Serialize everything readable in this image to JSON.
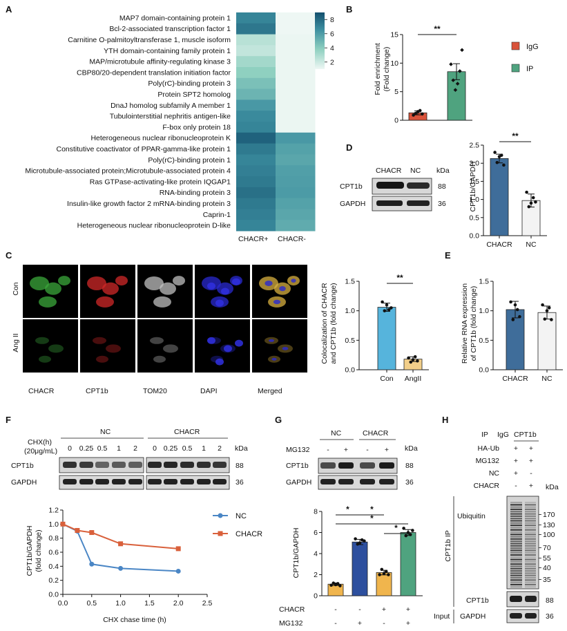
{
  "panels": {
    "A": "A",
    "B": "B",
    "C": "C",
    "D": "D",
    "E": "E",
    "F": "F",
    "G": "G",
    "H": "H"
  },
  "panel_a": {
    "rows": [
      "MAP7 domain-containing protein 1",
      "Bcl-2-associated transcription factor 1",
      "Carnitine O-palmitoyltransferase 1, muscle isoform",
      "YTH domain-containing family protein 1",
      "MAP/microtubule affinity-regulating kinase 3",
      "CBP80/20-dependent translation initiation factor",
      "Poly(rC)-binding protein 3",
      "Protein SPT2 homolog",
      "DnaJ homolog subfamily A member 1",
      "Tubulointerstitial nephritis antigen-like",
      "F-box only protein 18",
      "Heterogeneous nuclear ribonucleoprotein K",
      "Constitutive coactivator of PPAR-gamma-like protein 1",
      "Poly(rC)-binding protein 1",
      "Microtubule-associated protein;Microtubule-associated protein 4",
      "Ras GTPase-activating-like protein IQGAP1",
      "RNA-binding protein 3",
      "Insulin-like growth factor 2 mRNA-binding protein 3",
      "Caprin-1",
      "Heterogeneous nuclear ribonucleoprotein D-like"
    ],
    "columns": [
      "CHACR+",
      "CHACR-"
    ],
    "values": [
      [
        7.0,
        1.0
      ],
      [
        7.5,
        1.0
      ],
      [
        2.6,
        1.1
      ],
      [
        2.3,
        1.1
      ],
      [
        3.2,
        1.1
      ],
      [
        3.8,
        1.1
      ],
      [
        4.5,
        1.1
      ],
      [
        5.0,
        1.1
      ],
      [
        6.2,
        1.1
      ],
      [
        6.8,
        1.1
      ],
      [
        7.0,
        1.1
      ],
      [
        8.3,
        6.2
      ],
      [
        7.4,
        5.8
      ],
      [
        7.0,
        5.6
      ],
      [
        7.2,
        5.9
      ],
      [
        7.4,
        6.0
      ],
      [
        7.8,
        6.1
      ],
      [
        7.4,
        5.8
      ],
      [
        7.2,
        5.6
      ],
      [
        7.0,
        5.4
      ]
    ],
    "colorbar_ticks": [
      "8",
      "6",
      "4",
      "2"
    ],
    "colors": {
      "low": "#eef7f4",
      "high": "#14506e"
    }
  },
  "panel_b": {
    "ylabel": "Fold enrichment (Fold change)",
    "yticks": [
      "0",
      "5",
      "10",
      "15"
    ],
    "sig": "**",
    "legend": [
      {
        "label": "IgG",
        "color": "#d9533b"
      },
      {
        "label": "IP",
        "color": "#4fa37f"
      }
    ]
  },
  "panel_c": {
    "row_labels": [
      "Con",
      "Ang II"
    ],
    "col_labels": [
      "CHACR",
      "CPT1b",
      "TOM20",
      "DAPI",
      "Merged"
    ],
    "ylabel": "Colocalization  of CHACR and CPT1b (fold change)",
    "yticks": [
      "0.0",
      "0.5",
      "1.0",
      "1.5"
    ],
    "xticks": [
      "Con",
      "AngII"
    ],
    "sig": "**"
  },
  "panel_d": {
    "lane_labels": [
      "CHACR",
      "NC"
    ],
    "kda_label": "kDa",
    "bands": [
      {
        "name": "CPT1b",
        "kda": "88"
      },
      {
        "name": "GAPDH",
        "kda": "36"
      }
    ],
    "ylabel": "CPT1b/GAPDH",
    "yticks": [
      "0.0",
      "0.5",
      "1.0",
      "1.5",
      "2.0",
      "2.5"
    ],
    "xticks": [
      "CHACR",
      "NC"
    ],
    "sig": "**"
  },
  "panel_e": {
    "ylabel": "Relative RNA expression of CPT1b (fold change)",
    "yticks": [
      "0.0",
      "0.5",
      "1.0",
      "1.5"
    ],
    "xticks": [
      "CHACR",
      "NC"
    ]
  },
  "panel_f": {
    "groups": [
      "NC",
      "CHACR"
    ],
    "chx_label": "CHX(h)",
    "chx_conc": "(20μg/mL)",
    "times": [
      "0",
      "0.25",
      "0.5",
      "1",
      "2"
    ],
    "kda_label": "kDa",
    "bands": [
      {
        "name": "CPT1b",
        "kda": "88"
      },
      {
        "name": "GAPDH",
        "kda": "36"
      }
    ],
    "xlabel": "CHX chase time (h)",
    "ylabel": "CPT1b/GAPDH (fold change)",
    "xticks": [
      "0.0",
      "0.5",
      "1.0",
      "1.5",
      "2.0",
      "2.5"
    ],
    "yticks": [
      "0.0",
      "0.2",
      "0.4",
      "0.6",
      "0.8",
      "1.0",
      "1.2"
    ]
  },
  "panel_g": {
    "groups": [
      "NC",
      "CHACR"
    ],
    "mg132_label": "MG132",
    "mg132_signs": [
      "-",
      "+",
      "-",
      "+"
    ],
    "kda_label": "kDa",
    "bands": [
      {
        "name": "CPT1b",
        "kda": "88"
      },
      {
        "name": "GAPDH",
        "kda": "36"
      }
    ],
    "ylabel": "CPT1b/GAPDH",
    "yticks": [
      "0",
      "2",
      "4",
      "6",
      "8"
    ],
    "sig": "*",
    "cond_rows": [
      {
        "label": "CHACR",
        "signs": [
          "-",
          "-",
          "+",
          "+"
        ]
      },
      {
        "label": "MG132",
        "signs": [
          "-",
          "+",
          "-",
          "+"
        ]
      }
    ]
  },
  "panel_h": {
    "ip_label": "IP",
    "ip_cols": [
      "IgG",
      "CPT1b"
    ],
    "rows": [
      {
        "label": "HA-Ub",
        "signs": [
          "+",
          "+"
        ]
      },
      {
        "label": "MG132",
        "signs": [
          "+",
          "+"
        ]
      },
      {
        "label": "NC",
        "signs": [
          "+",
          "-"
        ]
      },
      {
        "label": "CHACR",
        "signs": [
          "-",
          "+"
        ]
      }
    ],
    "kda_label": "kDa",
    "ubiquitin_label": "Ubiquitin",
    "ip_side_label": "CPT1b IP",
    "markers": [
      "170",
      "130",
      "100",
      "70",
      "55",
      "40",
      "35"
    ],
    "cpt1b_label": "CPT1b",
    "cpt1b_kda": "88",
    "input_label": "Input",
    "gapdh_label": "GAPDH",
    "gapdh_kda": "36"
  },
  "chart_data": [
    {
      "type": "bar",
      "title": "",
      "ylabel": "Fold enrichment (Fold change)",
      "categories": [
        "IgG",
        "IP"
      ],
      "values": [
        1.3,
        8.5
      ],
      "errors": [
        0.35,
        1.4
      ],
      "points": [
        [
          0.9,
          1.2,
          1.5,
          1.7,
          1.1
        ],
        [
          9.8,
          7.0,
          5.3,
          6.4,
          8.6,
          12.3
        ]
      ],
      "ylim": [
        0,
        15
      ]
    },
    {
      "type": "bar",
      "title": "",
      "ylabel": "CPT1b/GAPDH",
      "categories": [
        "CHACR",
        "NC"
      ],
      "values": [
        2.13,
        0.97
      ],
      "errors": [
        0.12,
        0.18
      ],
      "points": [
        [
          2.3,
          2.02,
          2.18,
          2.22,
          1.95
        ],
        [
          1.2,
          0.8,
          0.9,
          1.05,
          0.93
        ]
      ],
      "ylim": [
        0,
        2.5
      ]
    },
    {
      "type": "bar",
      "title": "",
      "ylabel": "Colocalization  of CHACR and CPT1b (fold change)",
      "categories": [
        "Con",
        "AngII"
      ],
      "values": [
        1.06,
        0.18
      ],
      "errors": [
        0.07,
        0.04
      ],
      "points": [
        [
          1.15,
          1.0,
          1.1,
          1.02,
          1.05
        ],
        [
          0.2,
          0.13,
          0.17,
          0.22,
          0.15
        ]
      ],
      "ylim": [
        0,
        1.5
      ]
    },
    {
      "type": "bar",
      "title": "",
      "ylabel": "Relative RNA expression of CPT1b (fold change)",
      "categories": [
        "CHACR",
        "NC"
      ],
      "values": [
        1.02,
        0.97
      ],
      "errors": [
        0.14,
        0.11
      ],
      "points": [
        [
          1.15,
          0.85,
          1.1,
          1.02,
          0.9
        ],
        [
          1.1,
          0.86,
          1.0,
          1.05,
          0.85
        ]
      ],
      "ylim": [
        0,
        1.5
      ]
    },
    {
      "type": "line",
      "title": "",
      "xlabel": "CHX chase time (h)",
      "ylabel": "CPT1b/GAPDH (fold change)",
      "x": [
        0,
        0.25,
        0.5,
        1,
        2
      ],
      "series": [
        {
          "name": "NC",
          "values": [
            1.0,
            0.9,
            0.43,
            0.37,
            0.33
          ],
          "color": "#4a86c5"
        },
        {
          "name": "CHACR",
          "values": [
            1.0,
            0.91,
            0.88,
            0.72,
            0.65
          ],
          "color": "#d9603b"
        }
      ],
      "xlim": [
        0,
        2.5
      ],
      "ylim": [
        0,
        1.2
      ]
    },
    {
      "type": "bar",
      "title": "",
      "ylabel": "CPT1b/GAPDH",
      "categories": [
        "NC -",
        "NC +",
        "CHACR -",
        "CHACR +"
      ],
      "values": [
        1.1,
        5.1,
        2.2,
        6.0
      ],
      "errors": [
        0.12,
        0.25,
        0.22,
        0.28
      ],
      "points": [
        [
          1.0,
          1.2,
          1.05,
          1.15,
          0.95
        ],
        [
          5.4,
          4.9,
          5.0,
          5.3,
          5.2
        ],
        [
          2.0,
          2.5,
          2.1,
          2.3,
          2.0
        ],
        [
          6.4,
          5.7,
          6.0,
          5.8,
          6.2
        ]
      ],
      "colors": [
        "#f0b54d",
        "#2d4f9e",
        "#f0b54d",
        "#4fa37f"
      ],
      "ylim": [
        0,
        8
      ]
    }
  ]
}
